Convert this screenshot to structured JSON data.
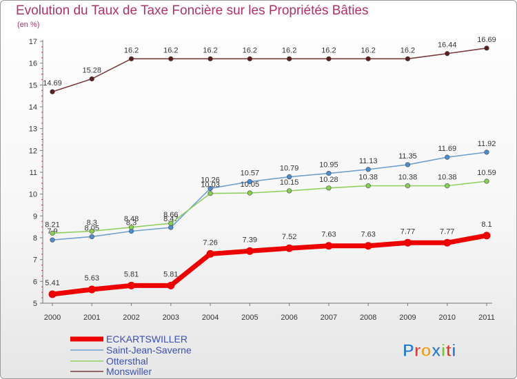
{
  "title": "Evolution du Taux de Taxe Foncière sur les Propriétés Bâties",
  "unit": "(en %)",
  "logo": "Proxiti",
  "chart_data": {
    "type": "line",
    "title": "Evolution du Taux de Taxe Foncière sur les Propriétés Bâties",
    "ylabel": "(en %)",
    "xlabel": "",
    "x": [
      "2000",
      "2001",
      "2002",
      "2003",
      "2004",
      "2005",
      "2006",
      "2007",
      "2008",
      "2009",
      "2010",
      "2011"
    ],
    "ylim": [
      5,
      17
    ],
    "yticks": [
      5,
      6,
      7,
      8,
      9,
      10,
      11,
      12,
      13,
      14,
      15,
      16,
      17
    ],
    "grid": false,
    "legend": "bottom-left",
    "series": [
      {
        "name": "ECKARTSWILLER",
        "color": "#ee0000",
        "labels": [
          "5.41",
          "5.63",
          "5.81",
          "5.81",
          "7.26",
          "7.39",
          "7.52",
          "7.63",
          "7.63",
          "7.77",
          "7.77",
          "8.1"
        ],
        "values": [
          5.41,
          5.63,
          5.81,
          5.81,
          7.26,
          7.39,
          7.52,
          7.63,
          7.63,
          7.77,
          7.77,
          8.1
        ]
      },
      {
        "name": "Saint-Jean-Saverne",
        "color": "#6d9fd2",
        "labels": [
          "7.9",
          "8.05",
          "8.3",
          "8.47",
          "10.26",
          "10.57",
          "10.79",
          "10.95",
          "11.13",
          "11.35",
          "11.69",
          "11.92"
        ],
        "values": [
          7.9,
          8.05,
          8.3,
          8.47,
          10.26,
          10.57,
          10.79,
          10.95,
          11.13,
          11.35,
          11.69,
          11.92
        ]
      },
      {
        "name": "Ottersthal",
        "color": "#8fd060",
        "labels": [
          "8.21",
          "8.3",
          "8.48",
          "8.66",
          "10.03",
          "10.05",
          "10.15",
          "10.28",
          "10.38",
          "10.38",
          "10.38",
          "10.59"
        ],
        "values": [
          8.21,
          8.3,
          8.48,
          8.66,
          10.03,
          10.05,
          10.15,
          10.28,
          10.38,
          10.38,
          10.38,
          10.59
        ]
      },
      {
        "name": "Monswiller",
        "color": "#7a3a3a",
        "labels": [
          "14.69",
          "15.28",
          "16.2",
          "16.2",
          "16.2",
          "16.2",
          "16.2",
          "16.2",
          "16.2",
          "16.2",
          "16.44",
          "16.69"
        ],
        "values": [
          14.69,
          15.28,
          16.2,
          16.2,
          16.2,
          16.2,
          16.2,
          16.2,
          16.2,
          16.2,
          16.44,
          16.69
        ]
      }
    ]
  }
}
